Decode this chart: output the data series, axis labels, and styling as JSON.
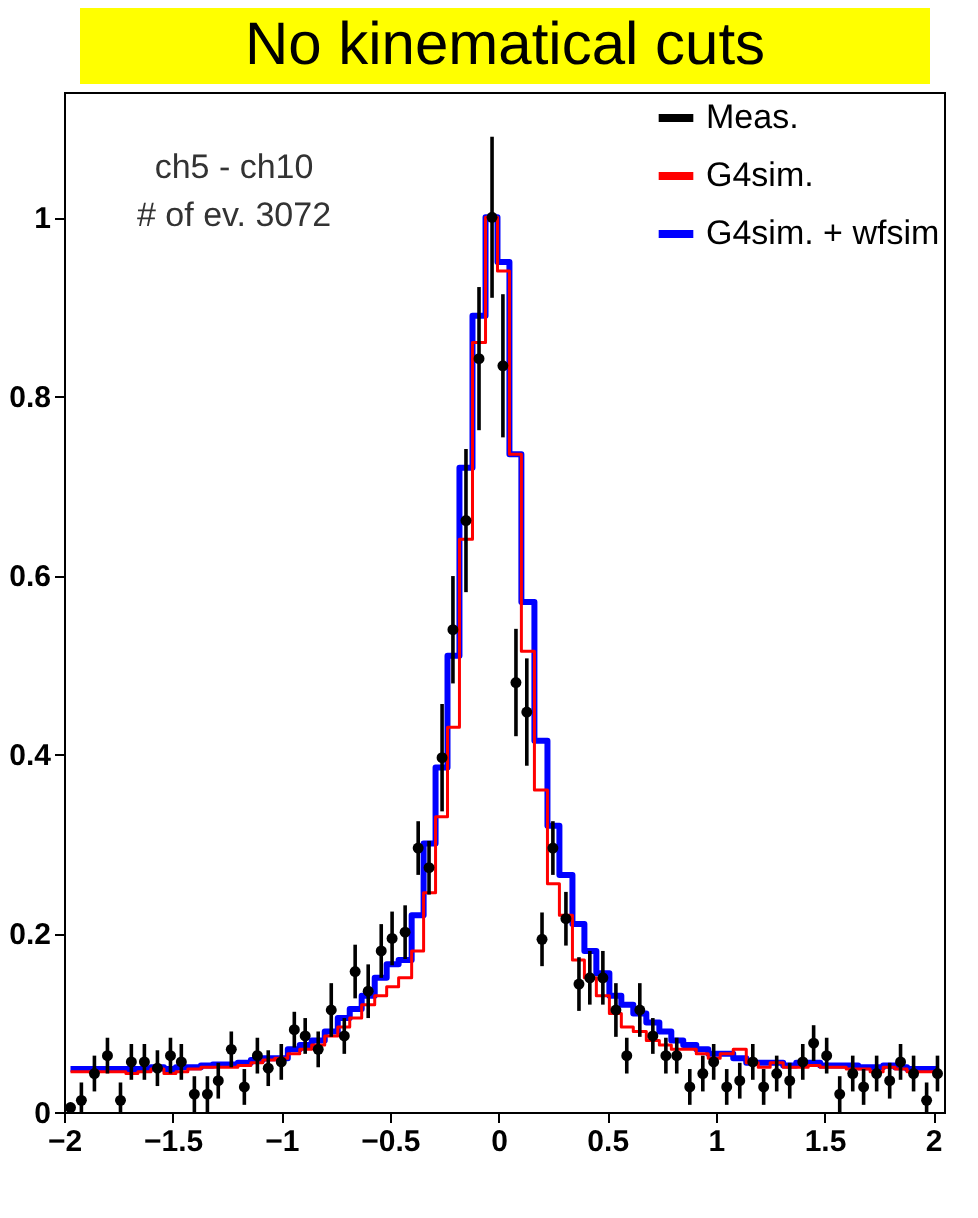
{
  "chart_data": {
    "type": "step",
    "title": "No kinematical cuts",
    "annotations": [
      "ch5 - ch10",
      "# of ev. 3072"
    ],
    "x": [
      -1.97,
      -1.92,
      -1.86,
      -1.8,
      -1.74,
      -1.69,
      -1.63,
      -1.57,
      -1.51,
      -1.46,
      -1.4,
      -1.34,
      -1.29,
      -1.23,
      -1.17,
      -1.11,
      -1.06,
      -1.0,
      -0.94,
      -0.89,
      -0.83,
      -0.77,
      -0.71,
      -0.66,
      -0.6,
      -0.54,
      -0.49,
      -0.43,
      -0.37,
      -0.32,
      -0.26,
      -0.21,
      -0.15,
      -0.09,
      -0.03,
      0.02,
      0.08,
      0.13,
      0.2,
      0.25,
      0.31,
      0.37,
      0.42,
      0.48,
      0.54,
      0.59,
      0.65,
      0.71,
      0.77,
      0.82,
      0.88,
      0.94,
      0.99,
      1.05,
      1.11,
      1.17,
      1.22,
      1.28,
      1.34,
      1.4,
      1.45,
      1.51,
      1.57,
      1.63,
      1.68,
      1.74,
      1.8,
      1.85,
      1.91,
      1.97,
      2.02
    ],
    "series": [
      {
        "name": "Meas.",
        "type": "scatter",
        "color": "#000000",
        "values": [
          0.005,
          0.013,
          0.043,
          0.063,
          0.013,
          0.056,
          0.056,
          0.049,
          0.063,
          0.056,
          0.02,
          0.02,
          0.035,
          0.07,
          0.028,
          0.063,
          0.049,
          0.056,
          0.092,
          0.085,
          0.07,
          0.114,
          0.085,
          0.157,
          0.135,
          0.18,
          0.194,
          0.201,
          0.295,
          0.273,
          0.396,
          0.539,
          0.661,
          0.842,
          1.0,
          0.834,
          0.48,
          0.447,
          0.193,
          0.295,
          0.216,
          0.143,
          0.15,
          0.15,
          0.114,
          0.063,
          0.114,
          0.085,
          0.063,
          0.063,
          0.028,
          0.043,
          0.056,
          0.028,
          0.035,
          0.056,
          0.028,
          0.043,
          0.035,
          0.056,
          0.077,
          0.063,
          0.02,
          0.043,
          0.028,
          0.043,
          0.035,
          0.056,
          0.043,
          0.013,
          0.043
        ],
        "marker": "circle",
        "errors": [
          0.005,
          [
            0,
            0.033
          ],
          0.02,
          0.02,
          [
            0,
            0.033
          ],
          0.02,
          0.02,
          0.02,
          0.02,
          0.02,
          0.02,
          0.02,
          0.02,
          0.02,
          0.02,
          0.02,
          0.02,
          0.02,
          0.02,
          0.02,
          0.02,
          0.03,
          0.02,
          0.03,
          0.03,
          0.03,
          0.03,
          0.03,
          0.03,
          0.03,
          0.06,
          0.06,
          0.08,
          0.08,
          0.09,
          0.08,
          0.06,
          0.06,
          0.03,
          0.03,
          0.03,
          0.03,
          0.03,
          0.03,
          0.03,
          0.02,
          0.03,
          0.02,
          0.02,
          0.02,
          0.02,
          0.02,
          0.02,
          0.02,
          0.02,
          0.02,
          0.02,
          0.02,
          0.02,
          0.02,
          0.02,
          0.02,
          0.02,
          0.02,
          0.02,
          0.02,
          0.02,
          0.02,
          0.02,
          [
            0,
            0.033
          ],
          0.02
        ]
      },
      {
        "name": "G4sim.",
        "color": "#ff0000",
        "values": [
          0.045,
          0.045,
          0.045,
          0.045,
          0.045,
          0.043,
          0.045,
          0.048,
          0.043,
          0.045,
          0.048,
          0.05,
          0.05,
          0.05,
          0.052,
          0.055,
          0.058,
          0.06,
          0.065,
          0.07,
          0.075,
          0.085,
          0.095,
          0.105,
          0.12,
          0.13,
          0.14,
          0.15,
          0.18,
          0.245,
          0.33,
          0.43,
          0.64,
          0.86,
          1.0,
          0.94,
          0.735,
          0.515,
          0.36,
          0.255,
          0.22,
          0.17,
          0.15,
          0.13,
          0.11,
          0.095,
          0.09,
          0.08,
          0.075,
          0.07,
          0.07,
          0.065,
          0.06,
          0.065,
          0.07,
          0.055,
          0.05,
          0.055,
          0.05,
          0.05,
          0.052,
          0.05,
          0.05,
          0.048,
          0.048,
          0.045,
          0.05,
          0.048,
          0.045,
          0.045,
          0.045
        ]
      },
      {
        "name": "G4sim. + wfsim",
        "color": "#0000ff",
        "values": [
          0.048,
          0.048,
          0.048,
          0.048,
          0.048,
          0.048,
          0.048,
          0.05,
          0.048,
          0.05,
          0.05,
          0.052,
          0.053,
          0.053,
          0.055,
          0.058,
          0.06,
          0.06,
          0.07,
          0.075,
          0.08,
          0.09,
          0.105,
          0.115,
          0.13,
          0.15,
          0.165,
          0.17,
          0.22,
          0.3,
          0.385,
          0.51,
          0.72,
          0.89,
          1.0,
          0.95,
          0.735,
          0.57,
          0.415,
          0.32,
          0.265,
          0.21,
          0.18,
          0.155,
          0.13,
          0.12,
          0.11,
          0.1,
          0.09,
          0.08,
          0.075,
          0.07,
          0.065,
          0.065,
          0.06,
          0.055,
          0.055,
          0.055,
          0.052,
          0.055,
          0.055,
          0.052,
          0.052,
          0.052,
          0.05,
          0.05,
          0.052,
          0.05,
          0.048,
          0.048,
          0.048
        ]
      }
    ],
    "xlim": [
      -2,
      2.05
    ],
    "xticks": [
      -2,
      -1.5,
      -1,
      -0.5,
      0,
      0.5,
      1,
      1.5,
      2
    ],
    "ylim": [
      0,
      1.14
    ],
    "yticks": [
      0,
      0.2,
      0.4,
      0.6,
      0.8,
      1
    ],
    "legend": "top right"
  }
}
